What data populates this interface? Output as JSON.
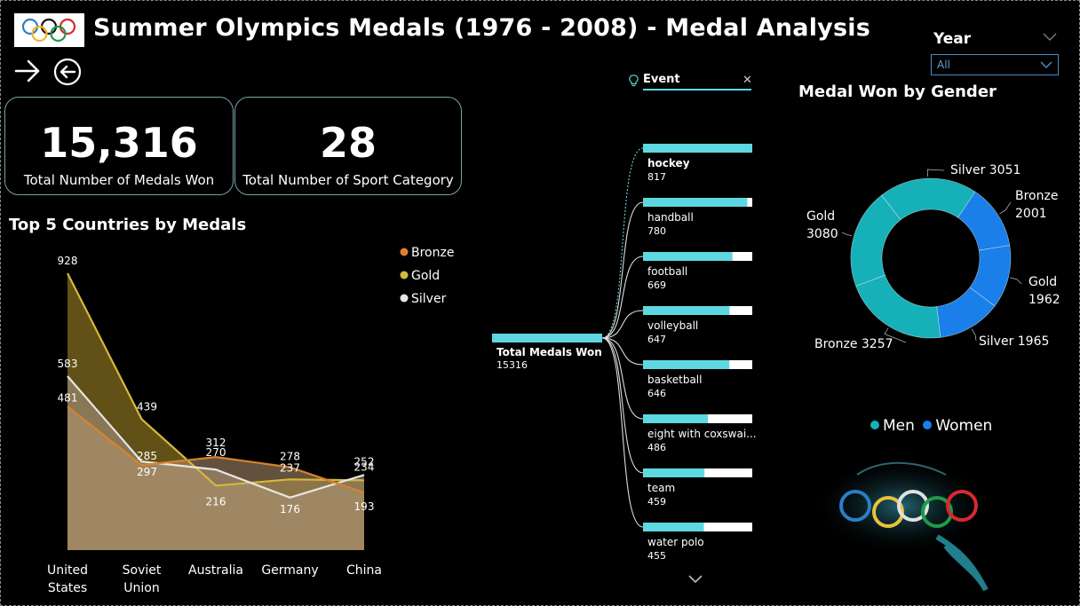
{
  "header": {
    "title": "Summer Olympics Medals (1976 - 2008) - Medal Analysis"
  },
  "colors": {
    "accent": "#5ed8e0",
    "bronze": "#d9822b",
    "gold": "#d4b93a",
    "silver": "#e6e6e6",
    "men": "#16b0b8",
    "women": "#1a7fe8"
  },
  "icons": {
    "logo": "olympic-rings-logo",
    "next": "arrow-right-icon",
    "back": "circle-arrow-left-icon"
  },
  "kpis": [
    {
      "value": "15,316",
      "label": "Total  Number of Medals Won"
    },
    {
      "value": "28",
      "label": "Total Number of Sport Category"
    }
  ],
  "slicer": {
    "label": "Year",
    "value": "All"
  },
  "decomposition": {
    "field_label": "Event",
    "root_label": "Total Medals Won",
    "root_value": "15316",
    "items": [
      {
        "label": "hockey",
        "value": "817"
      },
      {
        "label": "handball",
        "value": "780"
      },
      {
        "label": "football",
        "value": "669"
      },
      {
        "label": "volleyball",
        "value": "647"
      },
      {
        "label": "basketball",
        "value": "646"
      },
      {
        "label": "eight with coxswai...",
        "value": "486"
      },
      {
        "label": "team",
        "value": "459"
      },
      {
        "label": "water polo",
        "value": "455"
      }
    ]
  },
  "chart_data": [
    {
      "type": "area",
      "title": "Top 5 Countries by Medals",
      "categories": [
        "United States",
        "Soviet Union",
        "Australia",
        "Germany",
        "China"
      ],
      "category_lines": [
        [
          "United",
          "States"
        ],
        [
          "Soviet",
          "Union"
        ],
        [
          "Australia"
        ],
        [
          "Germany"
        ],
        [
          "China"
        ]
      ],
      "series": [
        {
          "name": "Bronze",
          "values": [
            481,
            285,
            312,
            278,
            193
          ]
        },
        {
          "name": "Gold",
          "values": [
            928,
            439,
            216,
            237,
            234
          ]
        },
        {
          "name": "Silver",
          "values": [
            583,
            297,
            270,
            176,
            252
          ]
        }
      ],
      "ylim": [
        0,
        928
      ],
      "grid": false,
      "legend": "top-right"
    },
    {
      "type": "pie",
      "title": "Medal Won by Gender",
      "donut": true,
      "slices": [
        {
          "group": "Men",
          "medal": "Silver",
          "value": 3051,
          "label": "Silver 3051"
        },
        {
          "group": "Women",
          "medal": "Bronze",
          "value": 2001,
          "label": "Bronze 2001"
        },
        {
          "group": "Women",
          "medal": "Gold",
          "value": 1962,
          "label": "Gold 1962"
        },
        {
          "group": "Women",
          "medal": "Silver",
          "value": 1965,
          "label": "Silver 1965"
        },
        {
          "group": "Men",
          "medal": "Bronze",
          "value": 3257,
          "label": "Bronze 3257"
        },
        {
          "group": "Men",
          "medal": "Gold",
          "value": 3080,
          "label": "Gold 3080"
        }
      ],
      "legend": [
        "Men",
        "Women"
      ],
      "legend_position": "bottom"
    }
  ]
}
